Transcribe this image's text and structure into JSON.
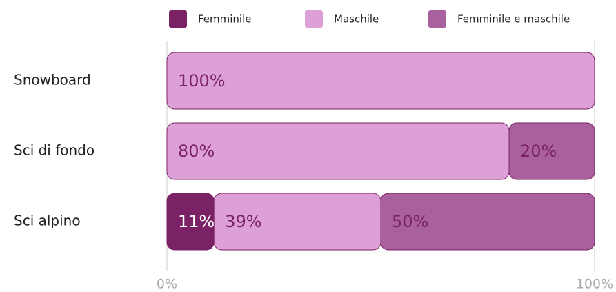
{
  "chart_data": {
    "type": "bar",
    "orientation": "horizontal",
    "stacked": true,
    "categories": [
      "Snowboard",
      "Sci di fondo",
      "Sci alpino"
    ],
    "series": [
      {
        "name": "Femminile",
        "color": "#7b2266",
        "values": [
          0,
          0,
          11
        ],
        "value_labels": [
          null,
          null,
          "11%"
        ]
      },
      {
        "name": "Maschile",
        "color": "#dc9fd6",
        "values": [
          100,
          80,
          39
        ],
        "value_labels": [
          "100%",
          "80%",
          "39%"
        ]
      },
      {
        "name": "Femminile e maschile",
        "color": "#a8609e",
        "values": [
          0,
          20,
          50
        ],
        "value_labels": [
          null,
          "20%",
          "50%"
        ]
      }
    ],
    "xlim": [
      0,
      100
    ],
    "xticks": [
      {
        "value": 0,
        "label": "0%"
      },
      {
        "value": 100,
        "label": "100%"
      }
    ],
    "legend": "top"
  }
}
